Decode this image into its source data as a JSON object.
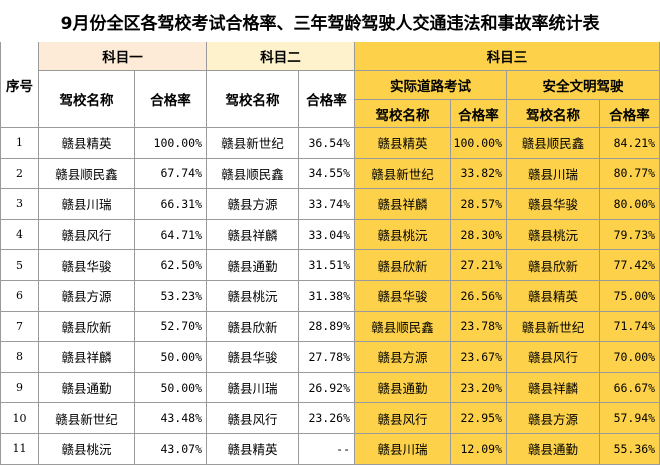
{
  "title": "9月份全区各驾校考试合格率、三年驾龄驾驶人交通违法和事故率统计表",
  "headers": {
    "seq": "序号",
    "subject1": "科目一",
    "subject2": "科目二",
    "subject3": "科目三",
    "road_test": "实际道路考试",
    "safe_driving": "安全文明驾驶",
    "school_name": "驾校名称",
    "pass_rate": "合格率"
  },
  "rows": [
    {
      "seq": "1",
      "s1_name": "赣县精英",
      "s1_rate": "100.00%",
      "s2_name": "赣县新世纪",
      "s2_rate": "36.54%",
      "s3a_name": "赣县精英",
      "s3a_rate": "100.00%",
      "s3b_name": "赣县顺民鑫",
      "s3b_rate": "84.21%"
    },
    {
      "seq": "2",
      "s1_name": "赣县顺民鑫",
      "s1_rate": "67.74%",
      "s2_name": "赣县顺民鑫",
      "s2_rate": "34.55%",
      "s3a_name": "赣县新世纪",
      "s3a_rate": "33.82%",
      "s3b_name": "赣县川瑞",
      "s3b_rate": "80.77%"
    },
    {
      "seq": "3",
      "s1_name": "赣县川瑞",
      "s1_rate": "66.31%",
      "s2_name": "赣县方源",
      "s2_rate": "33.74%",
      "s3a_name": "赣县祥麟",
      "s3a_rate": "28.57%",
      "s3b_name": "赣县华骏",
      "s3b_rate": "80.00%"
    },
    {
      "seq": "4",
      "s1_name": "赣县风行",
      "s1_rate": "64.71%",
      "s2_name": "赣县祥麟",
      "s2_rate": "33.04%",
      "s3a_name": "赣县桃沅",
      "s3a_rate": "28.30%",
      "s3b_name": "赣县桃沅",
      "s3b_rate": "79.73%"
    },
    {
      "seq": "5",
      "s1_name": "赣县华骏",
      "s1_rate": "62.50%",
      "s2_name": "赣县通勤",
      "s2_rate": "31.51%",
      "s3a_name": "赣县欣新",
      "s3a_rate": "27.21%",
      "s3b_name": "赣县欣新",
      "s3b_rate": "77.42%"
    },
    {
      "seq": "6",
      "s1_name": "赣县方源",
      "s1_rate": "53.23%",
      "s2_name": "赣县桃沅",
      "s2_rate": "31.38%",
      "s3a_name": "赣县华骏",
      "s3a_rate": "26.56%",
      "s3b_name": "赣县精英",
      "s3b_rate": "75.00%"
    },
    {
      "seq": "7",
      "s1_name": "赣县欣新",
      "s1_rate": "52.70%",
      "s2_name": "赣县欣新",
      "s2_rate": "28.89%",
      "s3a_name": "赣县顺民鑫",
      "s3a_rate": "23.78%",
      "s3b_name": "赣县新世纪",
      "s3b_rate": "71.74%"
    },
    {
      "seq": "8",
      "s1_name": "赣县祥麟",
      "s1_rate": "50.00%",
      "s2_name": "赣县华骏",
      "s2_rate": "27.78%",
      "s3a_name": "赣县方源",
      "s3a_rate": "23.67%",
      "s3b_name": "赣县风行",
      "s3b_rate": "70.00%"
    },
    {
      "seq": "9",
      "s1_name": "赣县通勤",
      "s1_rate": "50.00%",
      "s2_name": "赣县川瑞",
      "s2_rate": "26.92%",
      "s3a_name": "赣县通勤",
      "s3a_rate": "23.20%",
      "s3b_name": "赣县祥麟",
      "s3b_rate": "66.67%"
    },
    {
      "seq": "10",
      "s1_name": "赣县新世纪",
      "s1_rate": "43.48%",
      "s2_name": "赣县风行",
      "s2_rate": "23.26%",
      "s3a_name": "赣县风行",
      "s3a_rate": "22.95%",
      "s3b_name": "赣县方源",
      "s3b_rate": "57.94%"
    },
    {
      "seq": "11",
      "s1_name": "赣县桃沅",
      "s1_rate": "43.07%",
      "s2_name": "赣县精英",
      "s2_rate": "--",
      "s3a_name": "赣县川瑞",
      "s3a_rate": "12.09%",
      "s3b_name": "赣县通勤",
      "s3b_rate": "55.36%"
    }
  ],
  "colors": {
    "subject1_header": "#fdebd7",
    "subject2_header": "#fdf2cc",
    "subject3_header": "#fdd24a",
    "grid": "#9a9a9a"
  }
}
